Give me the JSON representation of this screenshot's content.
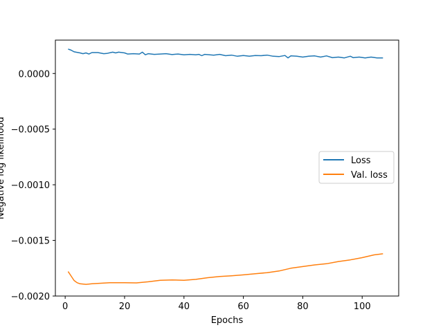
{
  "chart_data": {
    "type": "line",
    "title": "",
    "xlabel": "Epochs",
    "ylabel": "Negative log likelihood",
    "xlim": [
      -3.3,
      112.3
    ],
    "ylim": [
      -0.002,
      0.0003
    ],
    "xticks": [
      0,
      20,
      40,
      60,
      80,
      100
    ],
    "yticks": [
      0.0,
      -0.0005,
      -0.001,
      -0.0015,
      -0.002
    ],
    "ytick_labels": [
      "0.0000",
      "−0.0005",
      "−0.0010",
      "−0.0015",
      "−0.0020"
    ],
    "grid": false,
    "legend_position": "center-right",
    "series": [
      {
        "name": "Loss",
        "color": "#1f77b4",
        "points": [
          [
            1,
            0.00022
          ],
          [
            2,
            0.00021
          ],
          [
            3,
            0.000195
          ],
          [
            5,
            0.000185
          ],
          [
            6,
            0.000178
          ],
          [
            7,
            0.000185
          ],
          [
            8,
            0.000175
          ],
          [
            9,
            0.000188
          ],
          [
            11,
            0.000188
          ],
          [
            13,
            0.000178
          ],
          [
            14,
            0.00018
          ],
          [
            16,
            0.000192
          ],
          [
            17,
            0.000185
          ],
          [
            18,
            0.000192
          ],
          [
            20,
            0.000185
          ],
          [
            21,
            0.000175
          ],
          [
            23,
            0.000178
          ],
          [
            25,
            0.000175
          ],
          [
            26,
            0.000192
          ],
          [
            27,
            0.000168
          ],
          [
            28,
            0.000178
          ],
          [
            30,
            0.000172
          ],
          [
            32,
            0.000175
          ],
          [
            34,
            0.000178
          ],
          [
            36,
            0.00017
          ],
          [
            38,
            0.000175
          ],
          [
            40,
            0.000168
          ],
          [
            42,
            0.000172
          ],
          [
            44,
            0.000168
          ],
          [
            45,
            0.000172
          ],
          [
            46,
            0.00016
          ],
          [
            47,
            0.000172
          ],
          [
            50,
            0.000165
          ],
          [
            52,
            0.000172
          ],
          [
            54,
            0.00016
          ],
          [
            56,
            0.000165
          ],
          [
            58,
            0.000155
          ],
          [
            60,
            0.000162
          ],
          [
            62,
            0.000155
          ],
          [
            64,
            0.000162
          ],
          [
            66,
            0.00016
          ],
          [
            68,
            0.000165
          ],
          [
            70,
            0.000155
          ],
          [
            72,
            0.000152
          ],
          [
            74,
            0.000162
          ],
          [
            75,
            0.00014
          ],
          [
            76,
            0.000158
          ],
          [
            78,
            0.000155
          ],
          [
            80,
            0.000148
          ],
          [
            82,
            0.000155
          ],
          [
            84,
            0.000158
          ],
          [
            86,
            0.000148
          ],
          [
            88,
            0.000158
          ],
          [
            90,
            0.000142
          ],
          [
            92,
            0.000148
          ],
          [
            94,
            0.00014
          ],
          [
            96,
            0.000155
          ],
          [
            97,
            0.000142
          ],
          [
            99,
            0.000148
          ],
          [
            101,
            0.00014
          ],
          [
            103,
            0.000148
          ],
          [
            105,
            0.00014
          ],
          [
            107,
            0.00014
          ]
        ]
      },
      {
        "name": "Val. loss",
        "color": "#ff7f0e",
        "points": [
          [
            1,
            -0.00178
          ],
          [
            2,
            -0.00182
          ],
          [
            3,
            -0.00186
          ],
          [
            4,
            -0.00188
          ],
          [
            5,
            -0.00189
          ],
          [
            7,
            -0.001895
          ],
          [
            9,
            -0.00189
          ],
          [
            12,
            -0.001885
          ],
          [
            15,
            -0.00188
          ],
          [
            20,
            -0.00188
          ],
          [
            24,
            -0.001882
          ],
          [
            28,
            -0.001872
          ],
          [
            32,
            -0.001858
          ],
          [
            36,
            -0.001855
          ],
          [
            40,
            -0.001858
          ],
          [
            44,
            -0.00185
          ],
          [
            48,
            -0.001835
          ],
          [
            52,
            -0.001825
          ],
          [
            56,
            -0.001818
          ],
          [
            60,
            -0.00181
          ],
          [
            64,
            -0.0018
          ],
          [
            68,
            -0.00179
          ],
          [
            72,
            -0.001775
          ],
          [
            76,
            -0.00175
          ],
          [
            80,
            -0.001735
          ],
          [
            84,
            -0.00172
          ],
          [
            88,
            -0.00171
          ],
          [
            92,
            -0.00169
          ],
          [
            96,
            -0.001675
          ],
          [
            100,
            -0.001655
          ],
          [
            104,
            -0.00163
          ],
          [
            107,
            -0.00162
          ]
        ]
      }
    ]
  }
}
